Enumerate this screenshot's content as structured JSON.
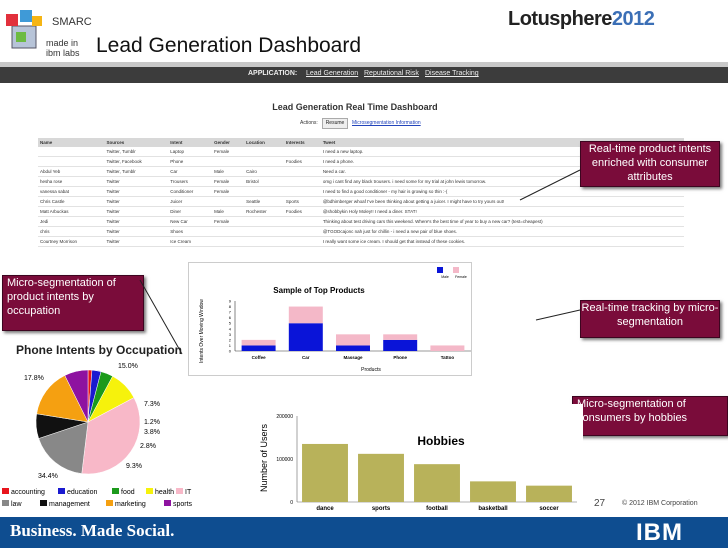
{
  "header": {
    "smarc": "SMARC",
    "made_in": "made in ibm labs",
    "title": "Lead Generation Dashboard",
    "conference_main": "Lotusphere",
    "conference_year": "2012"
  },
  "app_nav": {
    "label": "APPLICATION:",
    "links": [
      "Lead Generation",
      "Reputational Risk",
      "Disease Tracking"
    ]
  },
  "dashboard": {
    "title": "Lead Generation Real Time Dashboard",
    "actions_label": "Actions:",
    "resume_button": "Resume",
    "micro_link": "Microsegmentation Information"
  },
  "table": {
    "headers": [
      "Name",
      "Sources",
      "Intent",
      "Gender",
      "Location",
      "Interests",
      "Tweet"
    ],
    "rows": [
      [
        "",
        "Twitter, Tumblr",
        "Laptop",
        "Female",
        "",
        "",
        "I need a new laptop."
      ],
      [
        "",
        "Twitter, Facebook",
        "Phone",
        "",
        "",
        "Foodies",
        "I need a phone."
      ],
      [
        "Abdul Yeb",
        "Twitter, Tumblr",
        "Car",
        "Male",
        "Cairo",
        "",
        "Need a car."
      ],
      [
        "hesha rose",
        "Twitter",
        "Trousers",
        "Female",
        "Bristol",
        "",
        "omg i cant find any black trousers. i need some for my trial at john lewis tomorrow."
      ],
      [
        "vanessa sabat",
        "Twitter",
        "Conditioner",
        "Female",
        "",
        "",
        "I need to find a good conditioner - my hair is growing so thin :-("
      ],
      [
        "Chris Castle",
        "Twitter",
        "Juicer",
        "",
        "Seattle",
        "Sports",
        "@bdhimberger whoaf I've been thinking about getting a juicer. I might have to try yours out!"
      ],
      [
        "Matt Arbuckas",
        "Twitter",
        "Diner",
        "Male",
        "Rochester",
        "Foodies",
        "@shobbykin Holy Moley!! I need a diner. STAT!"
      ],
      [
        "Jedi",
        "Twitter",
        "New Car",
        "Female",
        "",
        "",
        "Thinking about test driving cars this weekend. Where's the best time of year to buy a new car? (test=cheapest)"
      ],
      [
        "chris",
        "Twitter",
        "Shoes",
        "",
        "",
        "",
        "@TGODcajonc nah just for chillin - i need a new pair of blue shoes."
      ],
      [
        "Courtney Morrison",
        "Twitter",
        "Ice Cream",
        "",
        "",
        "",
        "I really want some ice cream. I should get that instead of these cookies."
      ]
    ]
  },
  "callouts": {
    "product_intents": "Real-time product intents enriched with consumer attributes",
    "micro_occupation": "Micro-segmentation of product intents by occupation",
    "tracking": "Real-time tracking by micro-segmentation",
    "consumers_hobbies": "Micro-segmentation of consumers by hobbies"
  },
  "pie_title": "Phone Intents by Occupation",
  "footer": {
    "page": "27",
    "copyright": "© 2012 IBM Corporation",
    "slogan": "Business. Made Social.",
    "ibm": "IBM"
  },
  "chart_data": [
    {
      "type": "bar",
      "title": "Sample of Top Products",
      "xlabel": "Products",
      "ylabel": "Intents Over Moving Window",
      "categories": [
        "Coffee",
        "Car",
        "Massage",
        "Phone",
        "Tattoo"
      ],
      "series": [
        {
          "name": "Male",
          "values": [
            1,
            5,
            1,
            2,
            0
          ],
          "color": "#0a14d8"
        },
        {
          "name": "Female",
          "values": [
            1,
            3,
            2,
            1,
            1
          ],
          "color": "#f4b8c8"
        }
      ],
      "stacked": true,
      "ylim": [
        0,
        9
      ],
      "yticks": [
        0,
        1,
        2,
        3,
        4,
        5,
        6,
        7,
        8,
        9
      ],
      "legend": "top-right"
    },
    {
      "type": "pie",
      "title": "Phone Intents by Occupation",
      "categories": [
        "accounting",
        "education",
        "food",
        "health",
        "IT",
        "law",
        "management",
        "marketing",
        "sports"
      ],
      "series": [
        {
          "values": [
            1.2,
            2.8,
            3.8,
            9.3,
            34.4,
            17.8,
            7.6,
            15.0,
            7.3
          ],
          "colors": [
            "#e8141c",
            "#1a1ad0",
            "#1c9a1c",
            "#f6f20c",
            "#f8b8c8",
            "#888888",
            "#111111",
            "#f5a011",
            "#8e12a0"
          ]
        }
      ],
      "labels": [
        "15.0%",
        "7.3%",
        "1.2%",
        "3.8%",
        "2.8%",
        "9.3%",
        "34.4%",
        "17.8%"
      ],
      "legend": "bottom"
    },
    {
      "type": "bar",
      "title": "Hobbies",
      "ylabel": "Number of Users",
      "categories": [
        "dance",
        "sports",
        "football",
        "basketball",
        "soccer"
      ],
      "values": [
        135000,
        112000,
        88000,
        48000,
        38000
      ],
      "ylim": [
        0,
        200000
      ],
      "yticks": [
        0,
        100000,
        200000
      ],
      "color": "#b8b25a"
    }
  ]
}
